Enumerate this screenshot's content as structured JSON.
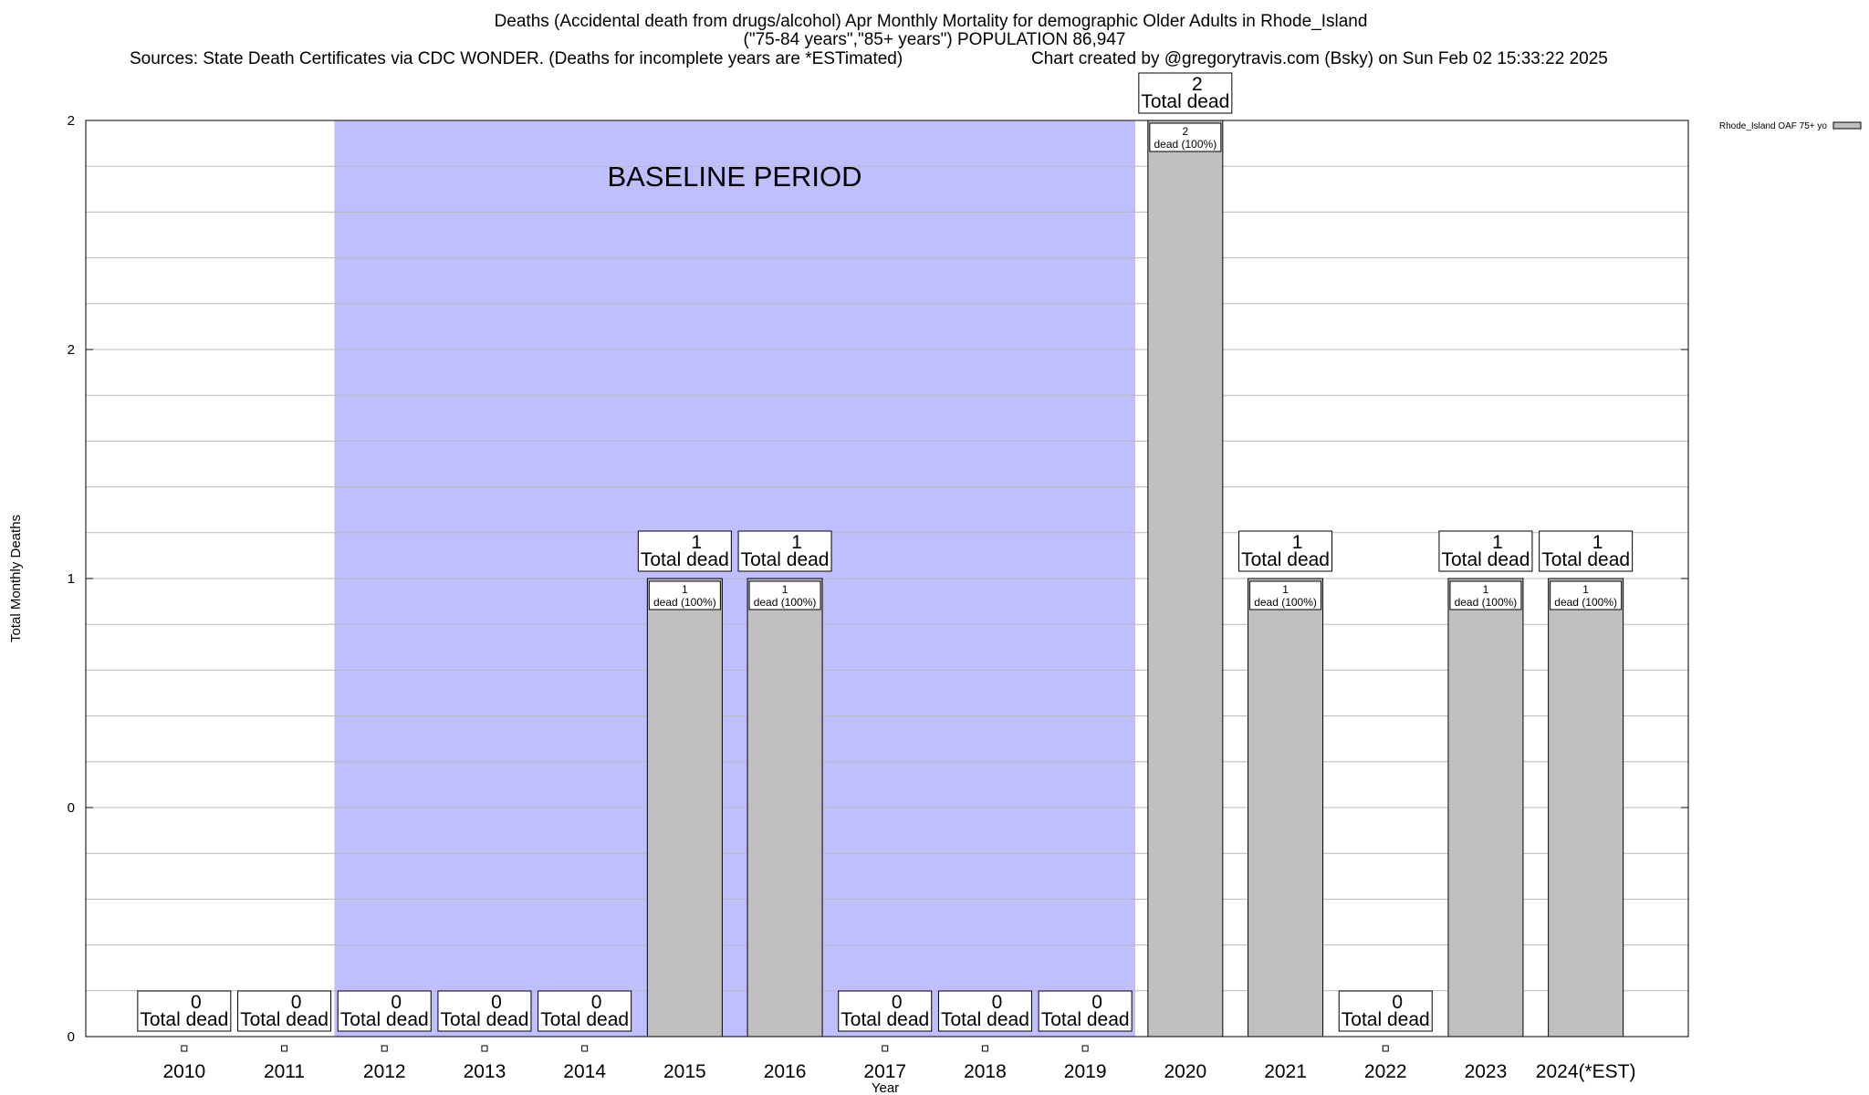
{
  "header": {
    "title_line1": "Deaths (Accidental death from drugs/alcohol) Apr Monthly Mortality for demographic Older Adults in Rhode_Island",
    "title_line2": "(\"75-84 years\",\"85+ years\") POPULATION 86,947",
    "source": "Sources: State Death Certificates via CDC WONDER. (Deaths for incomplete years are *ESTimated)",
    "credit": "Chart created by @gregorytravis.com (Bsky) on Sun Feb 02 15:33:22 2025"
  },
  "chart_data": {
    "type": "bar",
    "title": "Deaths (Accidental death from drugs/alcohol) Apr Monthly Mortality for demographic Older Adults in Rhode_Island",
    "xlabel": "Year",
    "ylabel": "Total Monthly Deaths",
    "categories": [
      "2010",
      "2011",
      "2012",
      "2013",
      "2014",
      "2015",
      "2016",
      "2017",
      "2018",
      "2019",
      "2020",
      "2021",
      "2022",
      "2023",
      "2024(*EST)"
    ],
    "ylim": [
      0,
      2
    ],
    "ytick_labels": [
      "0",
      "0",
      "1",
      "2",
      "2"
    ],
    "grid": true,
    "legend_position": "top-right",
    "series": [
      {
        "name": "Rhode_Island OAF 75+ yo",
        "color": "#c0c0c0",
        "values": [
          0,
          0,
          0,
          0,
          0,
          1,
          1,
          0,
          0,
          0,
          2,
          1,
          0,
          1,
          1
        ]
      }
    ],
    "total_label_suffix": "Total dead",
    "inner_label_suffix": "dead (100%)",
    "baseline": {
      "label": "BASELINE PERIOD",
      "start": "2012",
      "end": "2019",
      "color": "#bfbfff"
    }
  }
}
